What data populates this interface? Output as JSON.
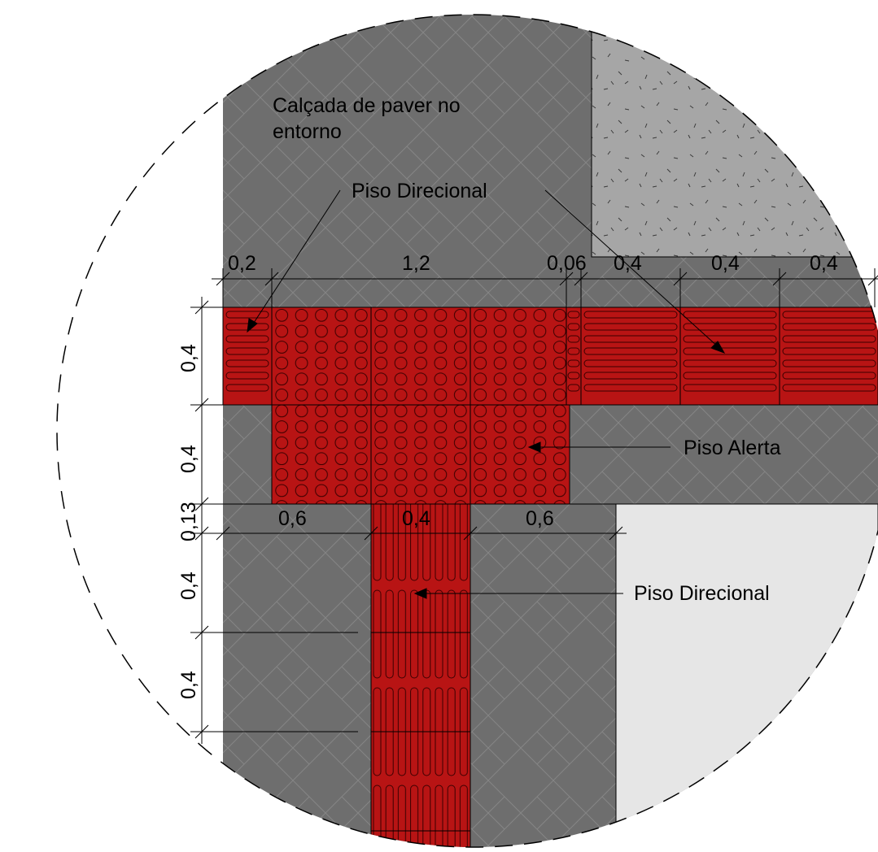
{
  "colors": {
    "paver": "#6e6e6e",
    "paver_line": "#8a8a8a",
    "concrete": "#a6a6a6",
    "street": "#e6e6e6",
    "tactile_red": "#b81414",
    "outline": "#000000"
  },
  "labels": {
    "surroundings": [
      "Calçada de paver no",
      "entorno"
    ],
    "directional_top": "Piso Direcional",
    "alert": "Piso Alerta",
    "directional_bottom": "Piso Direcional"
  },
  "dimensions": {
    "top_row": [
      "0,2",
      "1,2",
      "0,06",
      "0,4",
      "0,4",
      "0,4"
    ],
    "left_column": [
      "0,4",
      "0,4",
      "0,13",
      "0,4",
      "0,4"
    ],
    "middle_row": [
      "0,6",
      "0,4",
      "0,6"
    ]
  }
}
